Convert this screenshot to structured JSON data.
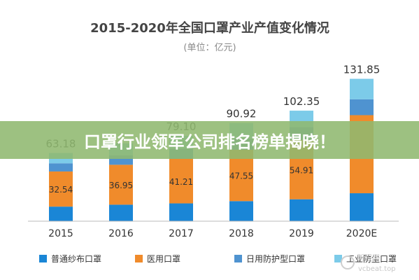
{
  "banner": {
    "text": "口罩行业领军公司排名榜单揭晓！",
    "bg": "#8fb86f"
  },
  "watermark": {
    "line1": "新眼网",
    "line2": "vcbeat.top"
  },
  "chart_data": {
    "type": "bar",
    "stacked": true,
    "title": "2015-2020年全国口罩产业产值变化情况",
    "subtitle": "(单位：亿元)",
    "categories": [
      "2015",
      "2016",
      "2017",
      "2018",
      "2019",
      "2020E"
    ],
    "totals": [
      63.18,
      72.05,
      79.1,
      90.92,
      102.35,
      131.85
    ],
    "total_labels": [
      "63.18",
      "",
      "79.10",
      "90.92",
      "102.35",
      "131.85"
    ],
    "series": [
      {
        "name": "普通纱布口罩",
        "color": "#1a86d6",
        "values": [
          13.5,
          15.3,
          16.5,
          18.6,
          20.3,
          25.9
        ],
        "labels": [
          "",
          "",
          "",
          "",
          "",
          ""
        ]
      },
      {
        "name": "医用口罩",
        "color": "#f08b2b",
        "values": [
          32.54,
          36.95,
          41.21,
          47.55,
          54.91,
          72.3
        ],
        "labels": [
          "32.54",
          "36.95",
          "41.21",
          "47.55",
          "54.91",
          ""
        ]
      },
      {
        "name": "日用防护型口罩",
        "color": "#4f93d0",
        "values": [
          7.6,
          8.7,
          9.5,
          10.4,
          11.9,
          14.7
        ],
        "labels": [
          "",
          "",
          "",
          "",
          "",
          ""
        ]
      },
      {
        "name": "工业防尘口罩",
        "color": "#7ccbe9",
        "values": [
          9.54,
          11.1,
          11.89,
          14.37,
          15.24,
          18.95
        ],
        "labels": [
          "",
          "",
          "",
          "",
          "",
          ""
        ]
      }
    ],
    "ylim": [
      0,
      140
    ],
    "legend_position": "bottom",
    "grid": false
  }
}
